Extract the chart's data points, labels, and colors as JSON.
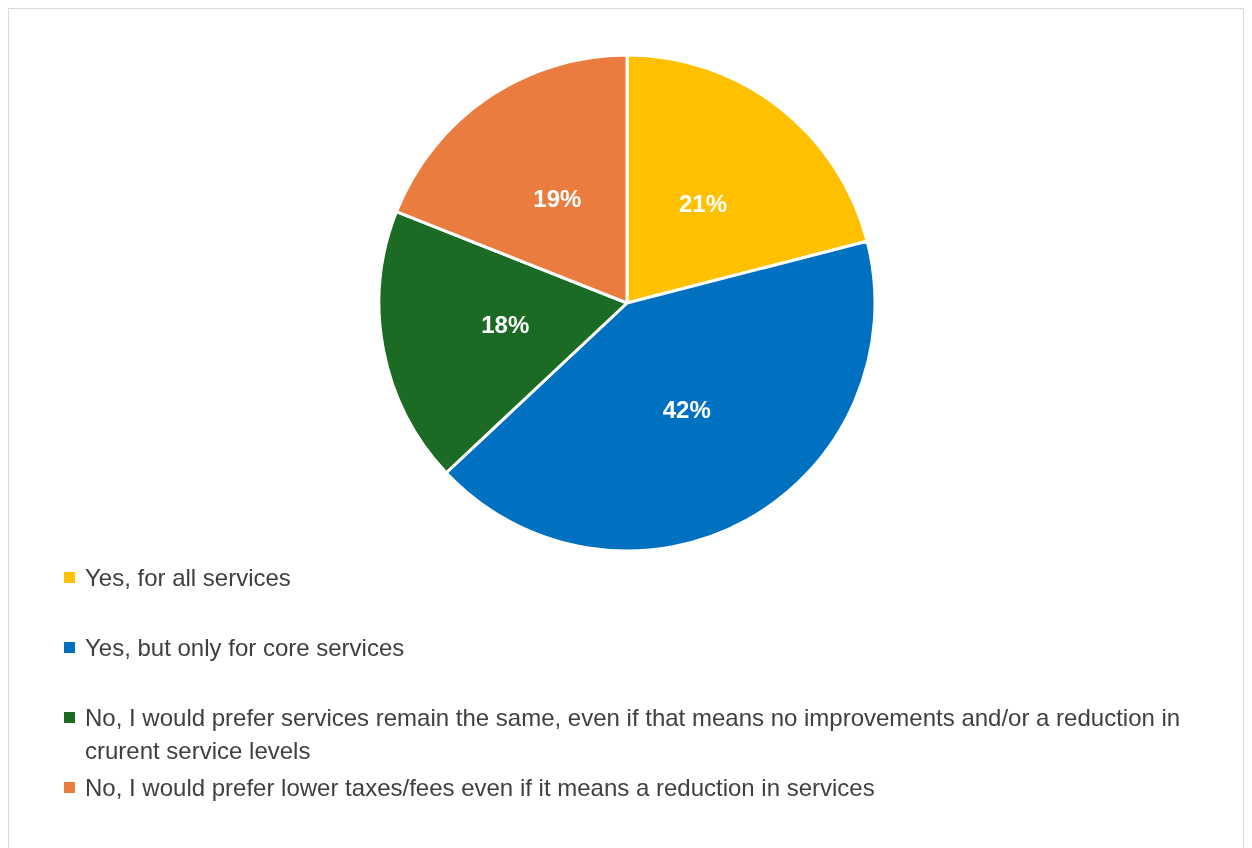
{
  "chart_data": {
    "type": "pie",
    "categories": [
      "Yes, for all services",
      "Yes, but only for core services",
      "No, I would prefer services remain the same, even if that means no improvements and/or a reduction in crurent service levels",
      "No, I would prefer lower taxes/fees even if it means a reduction in services"
    ],
    "values": [
      21,
      42,
      18,
      19
    ],
    "colors": [
      "#ffc000",
      "#0070c0",
      "#1b6b24",
      "#e97c3e"
    ],
    "value_labels": [
      "21%",
      "42%",
      "18%",
      "19%"
    ],
    "legend": "bottom"
  }
}
